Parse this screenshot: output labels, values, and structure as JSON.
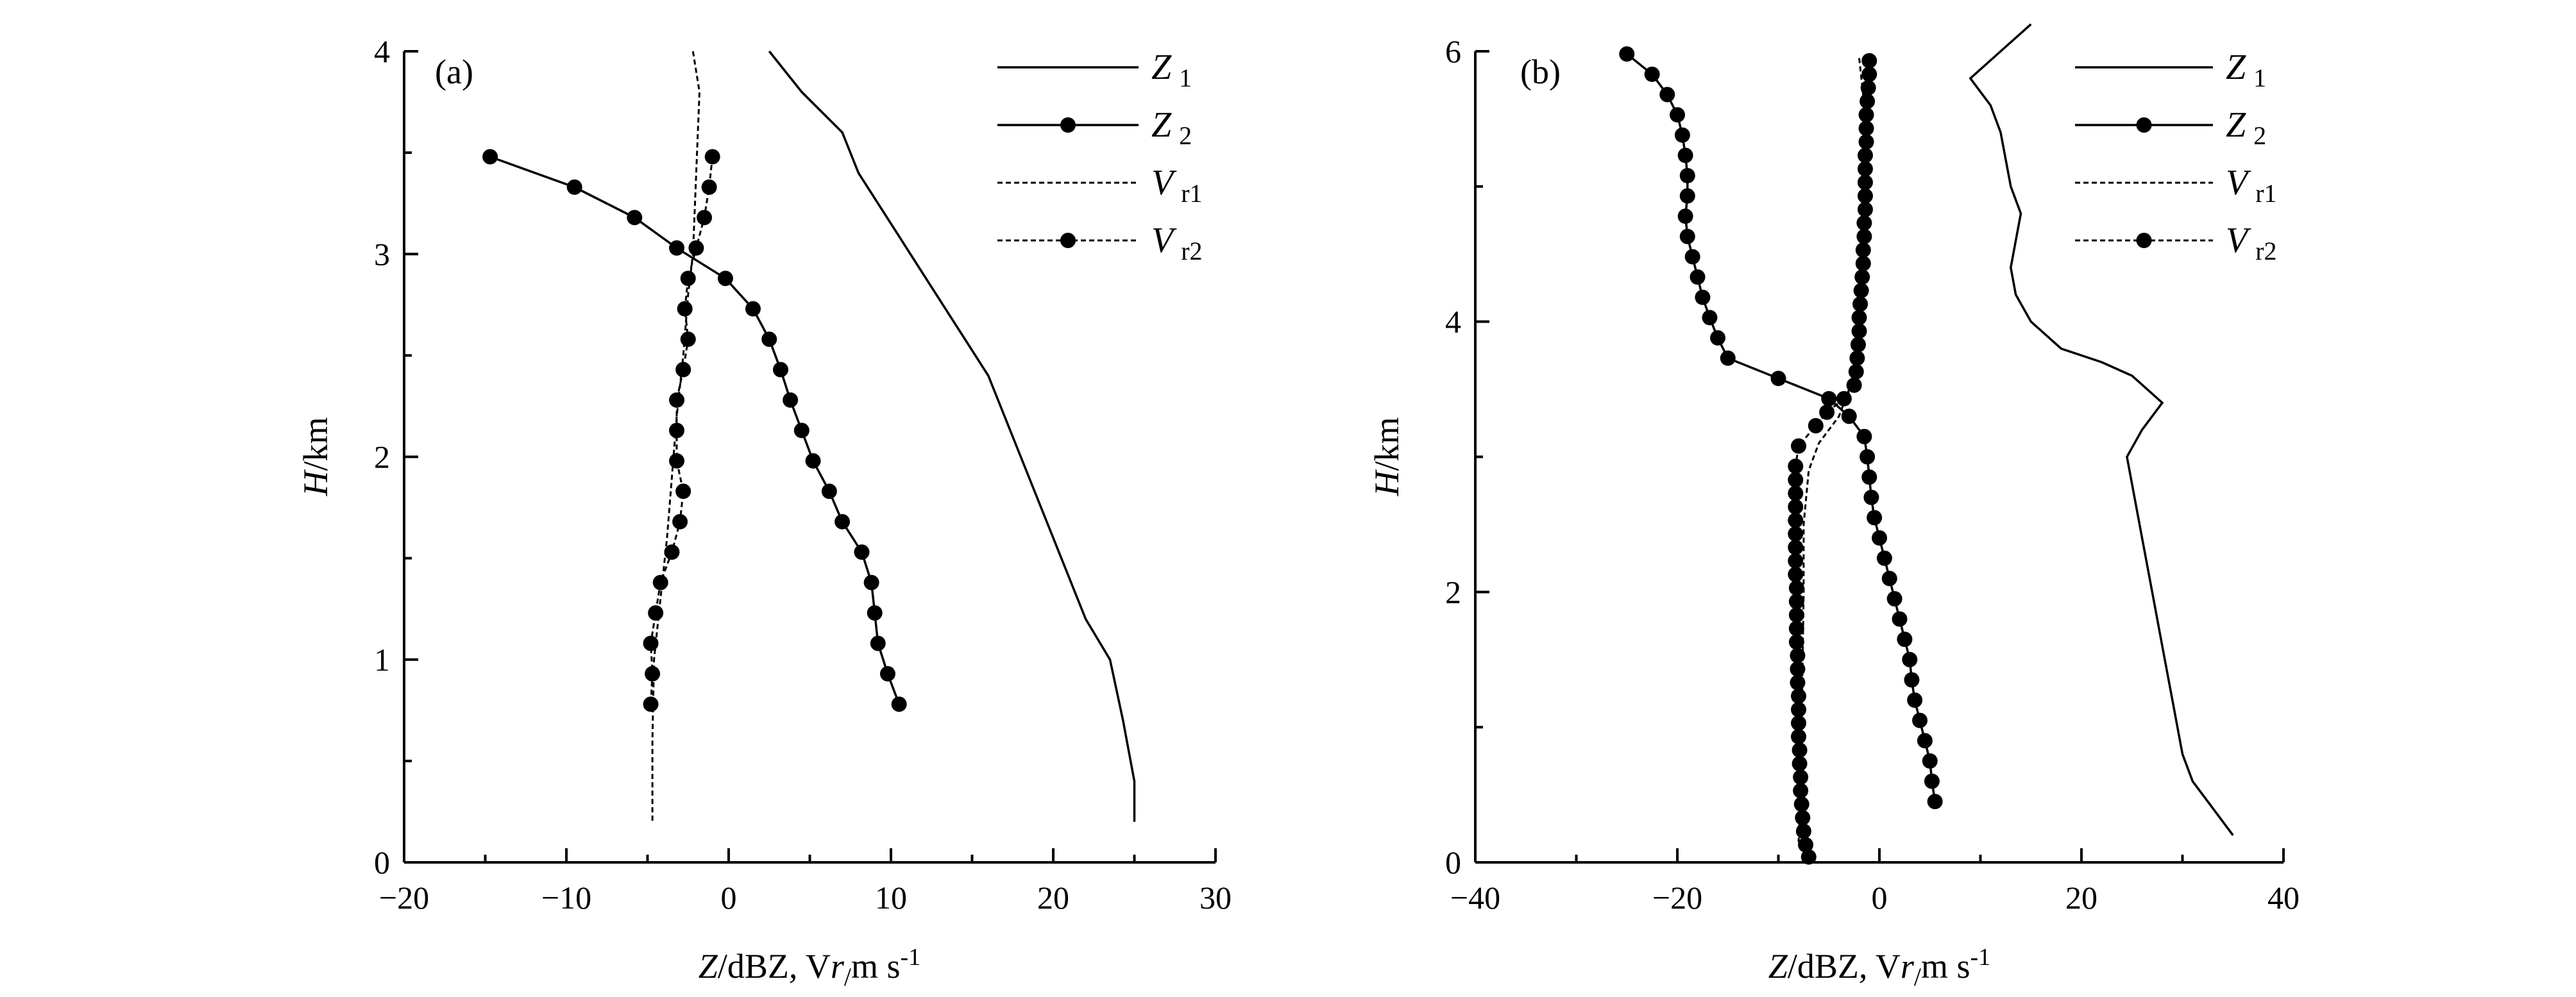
{
  "chart_data": [
    {
      "type": "line",
      "panel_label": "(a)",
      "xlabel": "Z/dBZ, Vr/m s-1",
      "ylabel": "H/km",
      "xlim": [
        -20,
        30
      ],
      "ylim": [
        0,
        4
      ],
      "xticks": [
        -20,
        -10,
        0,
        10,
        20,
        30
      ],
      "yticks": [
        0,
        1,
        2,
        3,
        4
      ],
      "x_tick_labels": [
        "−20",
        "−10",
        "0",
        "10",
        "20",
        "30"
      ],
      "y_tick_labels": [
        "0",
        "1",
        "2",
        "3",
        "4"
      ],
      "legend_position": "top-right",
      "series": [
        {
          "name": "Z1",
          "style": "solid",
          "marker": false,
          "points": [
            [
              2.5,
              4.0
            ],
            [
              3.5,
              3.9
            ],
            [
              4.5,
              3.8
            ],
            [
              7,
              3.6
            ],
            [
              8,
              3.4
            ],
            [
              10,
              3.15
            ],
            [
              12,
              2.9
            ],
            [
              14,
              2.65
            ],
            [
              16,
              2.4
            ],
            [
              18,
              2.0
            ],
            [
              20,
              1.6
            ],
            [
              22,
              1.2
            ],
            [
              23.5,
              1.0
            ],
            [
              24.3,
              0.7
            ],
            [
              25,
              0.4
            ],
            [
              25,
              0.2
            ]
          ]
        },
        {
          "name": "Z2",
          "style": "solid",
          "marker": true,
          "points": [
            [
              -14.7,
              3.48
            ],
            [
              -9.5,
              3.33
            ],
            [
              -5.8,
              3.18
            ],
            [
              -3.2,
              3.03
            ],
            [
              -0.2,
              2.88
            ],
            [
              1.5,
              2.73
            ],
            [
              2.5,
              2.58
            ],
            [
              3.2,
              2.43
            ],
            [
              3.8,
              2.28
            ],
            [
              4.5,
              2.13
            ],
            [
              5.2,
              1.98
            ],
            [
              6.2,
              1.83
            ],
            [
              7,
              1.68
            ],
            [
              8.2,
              1.53
            ],
            [
              8.8,
              1.38
            ],
            [
              9,
              1.23
            ],
            [
              9.2,
              1.08
            ],
            [
              9.8,
              0.93
            ],
            [
              10.5,
              0.78
            ]
          ]
        },
        {
          "name": "Vr1",
          "style": "dashed",
          "marker": false,
          "points": [
            [
              -2.2,
              4.0
            ],
            [
              -1.8,
              3.8
            ],
            [
              -2.0,
              3.4
            ],
            [
              -2.2,
              3.0
            ],
            [
              -2.5,
              2.8
            ],
            [
              -2.8,
              2.5
            ],
            [
              -3.2,
              2.2
            ],
            [
              -3.5,
              1.9
            ],
            [
              -3.8,
              1.6
            ],
            [
              -4.2,
              1.3
            ],
            [
              -4.6,
              1.0
            ],
            [
              -4.7,
              0.6
            ],
            [
              -4.7,
              0.2
            ]
          ]
        },
        {
          "name": "Vr2",
          "style": "dashed",
          "marker": true,
          "points": [
            [
              -1.0,
              3.48
            ],
            [
              -1.2,
              3.33
            ],
            [
              -1.5,
              3.18
            ],
            [
              -2.0,
              3.03
            ],
            [
              -2.5,
              2.88
            ],
            [
              -2.7,
              2.73
            ],
            [
              -2.5,
              2.58
            ],
            [
              -2.8,
              2.43
            ],
            [
              -3.2,
              2.28
            ],
            [
              -3.2,
              2.13
            ],
            [
              -3.2,
              1.98
            ],
            [
              -2.8,
              1.83
            ],
            [
              -3.0,
              1.68
            ],
            [
              -3.5,
              1.53
            ],
            [
              -4.2,
              1.38
            ],
            [
              -4.5,
              1.23
            ],
            [
              -4.8,
              1.08
            ],
            [
              -4.7,
              0.93
            ],
            [
              -4.8,
              0.78
            ]
          ]
        }
      ]
    },
    {
      "type": "line",
      "panel_label": "(b)",
      "xlabel": "Z/dBZ, Vr/m s-1",
      "ylabel": "H/km",
      "xlim": [
        -40,
        40
      ],
      "ylim": [
        0,
        6
      ],
      "xticks": [
        -40,
        -20,
        0,
        20,
        40
      ],
      "yticks": [
        0,
        2,
        4,
        6
      ],
      "x_tick_labels": [
        "−40",
        "−20",
        "0",
        "20",
        "40"
      ],
      "y_tick_labels": [
        "0",
        "2",
        "4",
        "6"
      ],
      "legend_position": "top-right",
      "series": [
        {
          "name": "Z1",
          "style": "solid",
          "marker": false,
          "points": [
            [
              15,
              6.2
            ],
            [
              12,
              6.0
            ],
            [
              9,
              5.8
            ],
            [
              11,
              5.6
            ],
            [
              12,
              5.4
            ],
            [
              12.5,
              5.2
            ],
            [
              13,
              5.0
            ],
            [
              14,
              4.8
            ],
            [
              13.5,
              4.6
            ],
            [
              13,
              4.4
            ],
            [
              13.5,
              4.2
            ],
            [
              15,
              4.0
            ],
            [
              18,
              3.8
            ],
            [
              22,
              3.7
            ],
            [
              25,
              3.6
            ],
            [
              28,
              3.4
            ],
            [
              26,
              3.2
            ],
            [
              24.5,
              3.0
            ],
            [
              25,
              2.8
            ],
            [
              26,
              2.4
            ],
            [
              27,
              2.0
            ],
            [
              28,
              1.6
            ],
            [
              29,
              1.2
            ],
            [
              30,
              0.8
            ],
            [
              31,
              0.6
            ],
            [
              35,
              0.2
            ]
          ]
        },
        {
          "name": "Z2",
          "style": "solid",
          "marker": true,
          "points": [
            [
              -25,
              5.98
            ],
            [
              -22.5,
              5.83
            ],
            [
              -21,
              5.68
            ],
            [
              -20,
              5.53
            ],
            [
              -19.5,
              5.38
            ],
            [
              -19.2,
              5.23
            ],
            [
              -19,
              5.08
            ],
            [
              -19,
              4.93
            ],
            [
              -19.2,
              4.78
            ],
            [
              -19,
              4.63
            ],
            [
              -18.5,
              4.48
            ],
            [
              -18,
              4.33
            ],
            [
              -17.5,
              4.18
            ],
            [
              -16.8,
              4.03
            ],
            [
              -16,
              3.88
            ],
            [
              -15,
              3.73
            ],
            [
              -10,
              3.58
            ],
            [
              -5,
              3.43
            ],
            [
              -3,
              3.3
            ],
            [
              -1.5,
              3.15
            ],
            [
              -1.2,
              3.0
            ],
            [
              -1.0,
              2.85
            ],
            [
              -0.8,
              2.7
            ],
            [
              -0.5,
              2.55
            ],
            [
              0,
              2.4
            ],
            [
              0.5,
              2.25
            ],
            [
              1,
              2.1
            ],
            [
              1.5,
              1.95
            ],
            [
              2,
              1.8
            ],
            [
              2.5,
              1.65
            ],
            [
              3,
              1.5
            ],
            [
              3.2,
              1.35
            ],
            [
              3.5,
              1.2
            ],
            [
              4,
              1.05
            ],
            [
              4.5,
              0.9
            ],
            [
              5,
              0.75
            ],
            [
              5.2,
              0.6
            ],
            [
              5.5,
              0.45
            ]
          ]
        },
        {
          "name": "Vr1",
          "style": "dashed",
          "marker": false,
          "points": [
            [
              -2,
              5.95
            ],
            [
              -1.5,
              5.6
            ],
            [
              -1.5,
              5.0
            ],
            [
              -1.5,
              4.5
            ],
            [
              -2,
              4.0
            ],
            [
              -2.5,
              3.6
            ],
            [
              -4,
              3.3
            ],
            [
              -6,
              3.1
            ],
            [
              -7,
              2.9
            ],
            [
              -7.5,
              2.5
            ],
            [
              -7.5,
              2.0
            ],
            [
              -7.6,
              1.5
            ],
            [
              -7.7,
              1.0
            ],
            [
              -7.8,
              0.5
            ],
            [
              -8,
              0.15
            ]
          ]
        },
        {
          "name": "Vr2",
          "style": "dashed",
          "marker": true,
          "points": [
            [
              -1.0,
              5.93
            ],
            [
              -1.0,
              5.83
            ],
            [
              -1.1,
              5.73
            ],
            [
              -1.2,
              5.63
            ],
            [
              -1.3,
              5.53
            ],
            [
              -1.3,
              5.43
            ],
            [
              -1.3,
              5.33
            ],
            [
              -1.4,
              5.23
            ],
            [
              -1.4,
              5.13
            ],
            [
              -1.4,
              5.03
            ],
            [
              -1.4,
              4.93
            ],
            [
              -1.4,
              4.83
            ],
            [
              -1.5,
              4.73
            ],
            [
              -1.5,
              4.63
            ],
            [
              -1.6,
              4.53
            ],
            [
              -1.6,
              4.43
            ],
            [
              -1.7,
              4.33
            ],
            [
              -1.8,
              4.23
            ],
            [
              -1.9,
              4.13
            ],
            [
              -2.0,
              4.03
            ],
            [
              -2.0,
              3.93
            ],
            [
              -2.1,
              3.83
            ],
            [
              -2.2,
              3.73
            ],
            [
              -2.3,
              3.63
            ],
            [
              -2.5,
              3.53
            ],
            [
              -3.5,
              3.43
            ],
            [
              -5.2,
              3.33
            ],
            [
              -6.3,
              3.23
            ],
            [
              -8.0,
              3.08
            ],
            [
              -8.3,
              2.93
            ],
            [
              -8.3,
              2.83
            ],
            [
              -8.3,
              2.73
            ],
            [
              -8.3,
              2.63
            ],
            [
              -8.3,
              2.53
            ],
            [
              -8.3,
              2.43
            ],
            [
              -8.3,
              2.33
            ],
            [
              -8.3,
              2.23
            ],
            [
              -8.3,
              2.13
            ],
            [
              -8.2,
              2.03
            ],
            [
              -8.2,
              1.93
            ],
            [
              -8.2,
              1.83
            ],
            [
              -8.2,
              1.73
            ],
            [
              -8.2,
              1.63
            ],
            [
              -8.1,
              1.53
            ],
            [
              -8.1,
              1.43
            ],
            [
              -8.1,
              1.33
            ],
            [
              -8.0,
              1.23
            ],
            [
              -8.0,
              1.13
            ],
            [
              -8.0,
              1.03
            ],
            [
              -8.0,
              0.93
            ],
            [
              -7.9,
              0.83
            ],
            [
              -7.9,
              0.73
            ],
            [
              -7.8,
              0.63
            ],
            [
              -7.8,
              0.53
            ],
            [
              -7.7,
              0.43
            ],
            [
              -7.6,
              0.33
            ],
            [
              -7.5,
              0.23
            ],
            [
              -7.3,
              0.13
            ],
            [
              -7.0,
              0.04
            ]
          ]
        }
      ]
    }
  ]
}
